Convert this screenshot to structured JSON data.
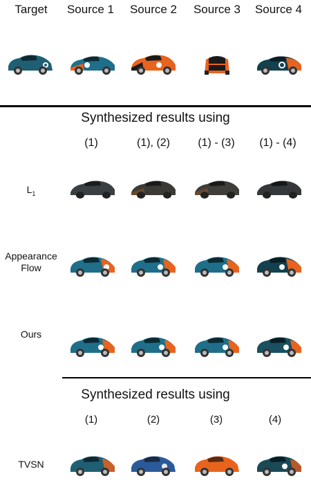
{
  "header": {
    "columns": [
      "Target",
      "Source 1",
      "Source 2",
      "Source 3",
      "Source 4"
    ]
  },
  "section1": {
    "title": "Synthesized results using",
    "subheaders": [
      "(1)",
      "(1), (2)",
      "(1) - (3)",
      "(1) - (4)"
    ],
    "rows": [
      {
        "label": "L",
        "sub": "1"
      },
      {
        "label": "Appearance Flow"
      },
      {
        "label": "Ours"
      }
    ]
  },
  "section2": {
    "title": "Synthesized results using",
    "subheaders": [
      "(1)",
      "(2)",
      "(3)",
      "(4)"
    ],
    "rows": [
      {
        "label": "TVSN"
      }
    ]
  },
  "colors": {
    "teal": "#1f5f74",
    "orange": "#e8641e",
    "black": "#1a1a1a",
    "dark_teal": "#14404f"
  }
}
